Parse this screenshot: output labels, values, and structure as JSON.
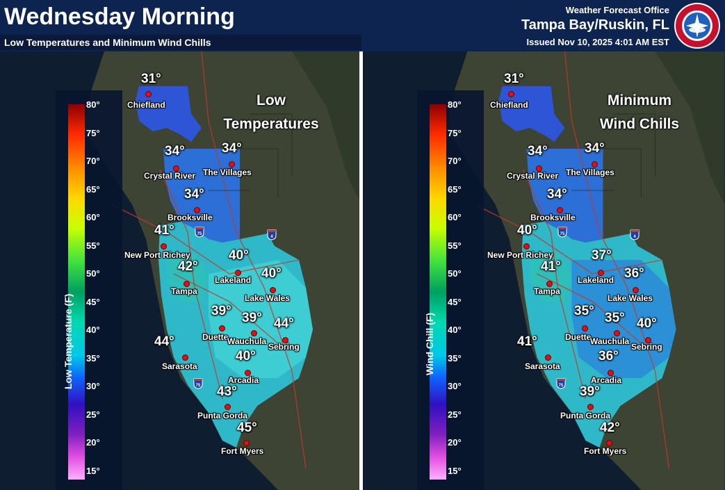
{
  "header": {
    "title": "Wednesday Morning",
    "subtitle": "Low Temperatures and Minimum Wind Chills",
    "office_line1": "Weather Forecast Office",
    "office_line2": "Tampa Bay/Ruskin, FL",
    "issued": "Issued Nov 10, 2025 4:01 AM EST",
    "logo": "nws-logo"
  },
  "colors": {
    "header_bg": "#0d2350",
    "water": "#0d1b2e",
    "land": "#3a4030",
    "roads": "#c0392b",
    "dot": "#e01010"
  },
  "legend_ticks": [
    "80°",
    "75°",
    "70°",
    "65°",
    "60°",
    "55°",
    "50°",
    "45°",
    "40°",
    "35°",
    "30°",
    "25°",
    "20°",
    "15°"
  ],
  "panels": [
    {
      "label_line1": "Low",
      "label_line2": "Temperatures",
      "legend_title": "Low Temperature (F)",
      "cities": [
        {
          "name": "Chiefland",
          "value": "31°"
        },
        {
          "name": "Crystal River",
          "value": "34°"
        },
        {
          "name": "The Villages",
          "value": "34°"
        },
        {
          "name": "Brooksville",
          "value": "34°"
        },
        {
          "name": "New Port Richey",
          "value": "41°"
        },
        {
          "name": "Tampa",
          "value": "42°"
        },
        {
          "name": "Lakeland",
          "value": "40°"
        },
        {
          "name": "Lake Wales",
          "value": "40°"
        },
        {
          "name": "Duette",
          "value": "39°"
        },
        {
          "name": "Wauchula",
          "value": "39°"
        },
        {
          "name": "Sebring",
          "value": "44°"
        },
        {
          "name": "Sarasota",
          "value": "44°"
        },
        {
          "name": "Arcadia",
          "value": "40°"
        },
        {
          "name": "Punta Gorda",
          "value": "43°"
        },
        {
          "name": "Fort Myers",
          "value": "45°"
        }
      ]
    },
    {
      "label_line1": "Minimum",
      "label_line2": "Wind Chills",
      "legend_title": "Wind Chill (F)",
      "cities": [
        {
          "name": "Chiefland",
          "value": "31°"
        },
        {
          "name": "Crystal River",
          "value": "34°"
        },
        {
          "name": "The Villages",
          "value": "34°"
        },
        {
          "name": "Brooksville",
          "value": "34°"
        },
        {
          "name": "New Port Richey",
          "value": "40°"
        },
        {
          "name": "Tampa",
          "value": "41°"
        },
        {
          "name": "Lakeland",
          "value": "37°"
        },
        {
          "name": "Lake Wales",
          "value": "36°"
        },
        {
          "name": "Duette",
          "value": "35°"
        },
        {
          "name": "Wauchula",
          "value": "35°"
        },
        {
          "name": "Sebring",
          "value": "40°"
        },
        {
          "name": "Sarasota",
          "value": "41°"
        },
        {
          "name": "Arcadia",
          "value": "36°"
        },
        {
          "name": "Punta Gorda",
          "value": "39°"
        },
        {
          "name": "Fort Myers",
          "value": "42°"
        }
      ]
    }
  ],
  "interstates": [
    "75",
    "4"
  ]
}
